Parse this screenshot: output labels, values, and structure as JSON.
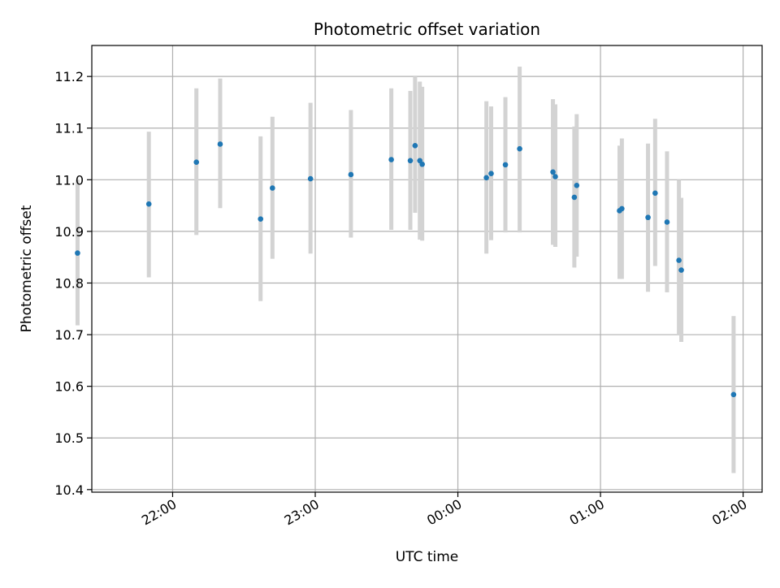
{
  "chart_data": {
    "type": "scatter",
    "title": "Photometric offset variation",
    "xlabel": "UTC time",
    "ylabel": "Photometric offset",
    "grid": true,
    "legend": "none",
    "x_is_time": true,
    "xlim": [
      "21:26",
      "02:08"
    ],
    "ylim": [
      10.395,
      11.26
    ],
    "x_ticks": [
      "22:00",
      "23:00",
      "00:00",
      "01:00",
      "02:00"
    ],
    "y_ticks": [
      "10.4",
      "10.5",
      "10.6",
      "10.7",
      "10.8",
      "10.9",
      "11.0",
      "11.1",
      "11.2"
    ],
    "colors": {
      "point": "#1f77b4",
      "errorbar": "#d3d3d3",
      "grid": "#b0b0b0"
    },
    "series": [
      {
        "x": [
          "21:20",
          "21:50",
          "22:10",
          "22:20",
          "22:37",
          "22:42",
          "22:58",
          "23:15",
          "23:32",
          "23:40",
          "23:42",
          "23:44",
          "23:45",
          "00:12",
          "00:14",
          "00:20",
          "00:26",
          "00:40",
          "00:41",
          "00:49",
          "00:50",
          "01:08",
          "01:09",
          "01:20",
          "01:23",
          "01:28",
          "01:33",
          "01:34",
          "01:56"
        ],
        "y": [
          10.858,
          10.953,
          11.034,
          11.069,
          10.924,
          10.984,
          11.002,
          11.01,
          11.039,
          11.037,
          11.066,
          11.037,
          11.03,
          11.004,
          11.012,
          11.029,
          11.06,
          11.015,
          11.006,
          10.966,
          10.989,
          10.94,
          10.944,
          10.927,
          10.974,
          10.918,
          10.844,
          10.825,
          10.584
        ],
        "y_low": [
          10.718,
          10.811,
          10.893,
          10.945,
          10.765,
          10.847,
          10.857,
          10.888,
          10.903,
          10.903,
          10.936,
          10.884,
          10.882,
          10.857,
          10.883,
          10.898,
          10.898,
          10.874,
          10.87,
          10.83,
          10.851,
          10.808,
          10.808,
          10.783,
          10.833,
          10.782,
          10.7,
          10.686,
          10.432
        ],
        "y_high": [
          11.0,
          11.093,
          11.177,
          11.196,
          11.084,
          11.122,
          11.149,
          11.135,
          11.177,
          11.172,
          11.2,
          11.19,
          11.18,
          11.152,
          11.142,
          11.16,
          11.219,
          11.156,
          11.146,
          11.103,
          11.127,
          11.066,
          11.08,
          11.07,
          11.118,
          11.055,
          11.0,
          10.965,
          10.736
        ]
      }
    ]
  }
}
